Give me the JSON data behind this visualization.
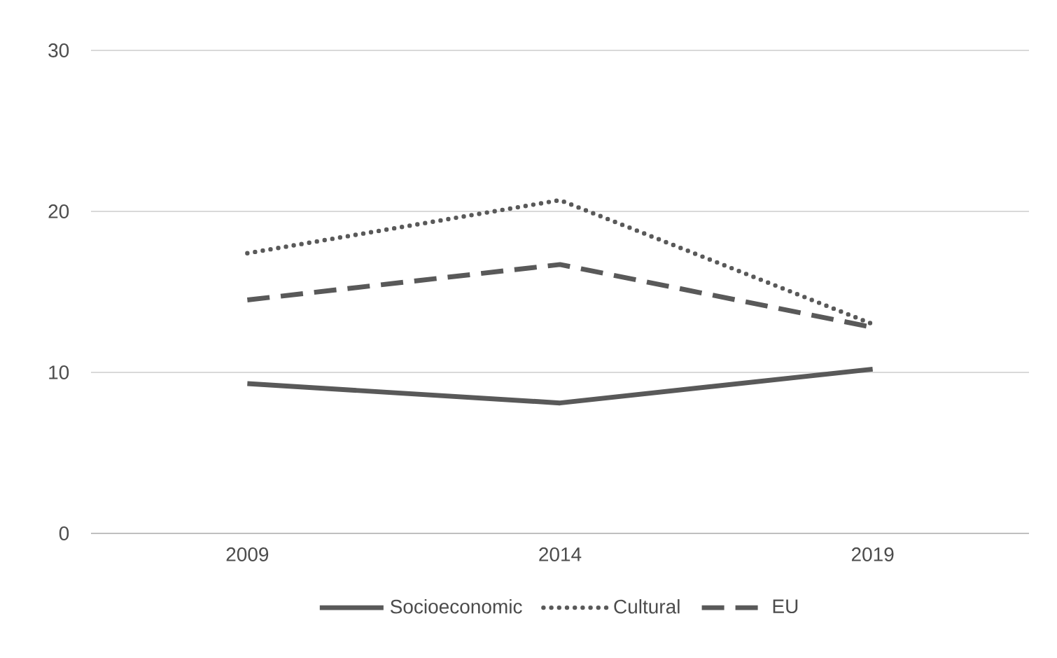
{
  "chart_data": {
    "type": "line",
    "categories": [
      "2009",
      "2014",
      "2019"
    ],
    "series": [
      {
        "name": "Socioeconomic",
        "color": "#595959",
        "line_style": "solid",
        "values": [
          9.3,
          8.1,
          10.2
        ]
      },
      {
        "name": "Cultural",
        "color": "#595959",
        "line_style": "dotted",
        "values": [
          17.4,
          20.7,
          13.0
        ]
      },
      {
        "name": "EU",
        "color": "#595959",
        "line_style": "dashed",
        "values": [
          14.5,
          16.7,
          12.8
        ]
      }
    ],
    "ylim": [
      0,
      30
    ],
    "yticks": [
      0,
      10,
      20,
      30
    ],
    "grid": "y",
    "legend": "bottom",
    "marker": "none"
  }
}
